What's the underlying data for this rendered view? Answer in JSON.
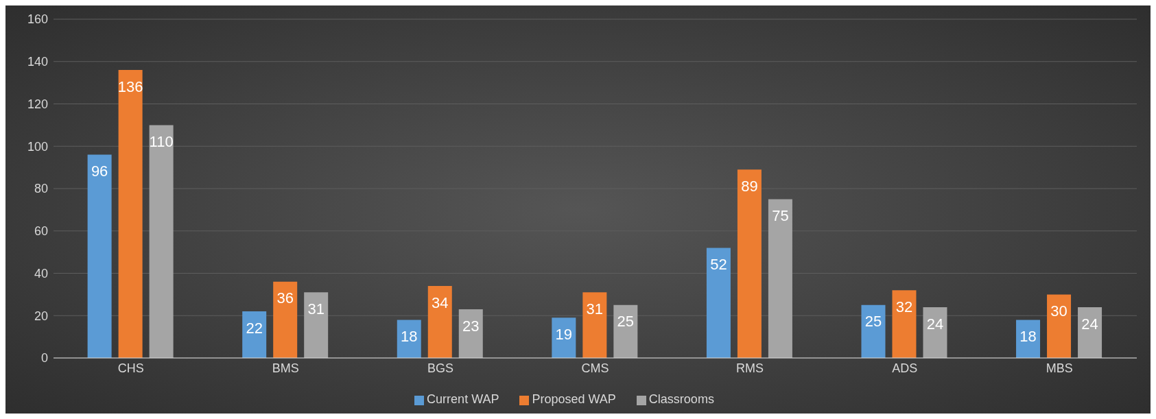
{
  "chart_data": {
    "type": "bar",
    "categories": [
      "CHS",
      "BMS",
      "BGS",
      "CMS",
      "RMS",
      "ADS",
      "MBS"
    ],
    "series": [
      {
        "name": "Current WAP",
        "color": "#5b9bd5",
        "values": [
          96,
          22,
          18,
          19,
          52,
          25,
          18
        ]
      },
      {
        "name": "Proposed WAP",
        "color": "#ed7d31",
        "values": [
          136,
          36,
          34,
          31,
          89,
          32,
          30
        ]
      },
      {
        "name": "Classrooms",
        "color": "#a5a5a5",
        "values": [
          110,
          31,
          23,
          25,
          75,
          24,
          24
        ]
      }
    ],
    "ylim": [
      0,
      160
    ],
    "yticks": [
      0,
      20,
      40,
      60,
      80,
      100,
      120,
      140,
      160
    ],
    "grid": "y",
    "legend": "bottom",
    "data_labels": true
  }
}
